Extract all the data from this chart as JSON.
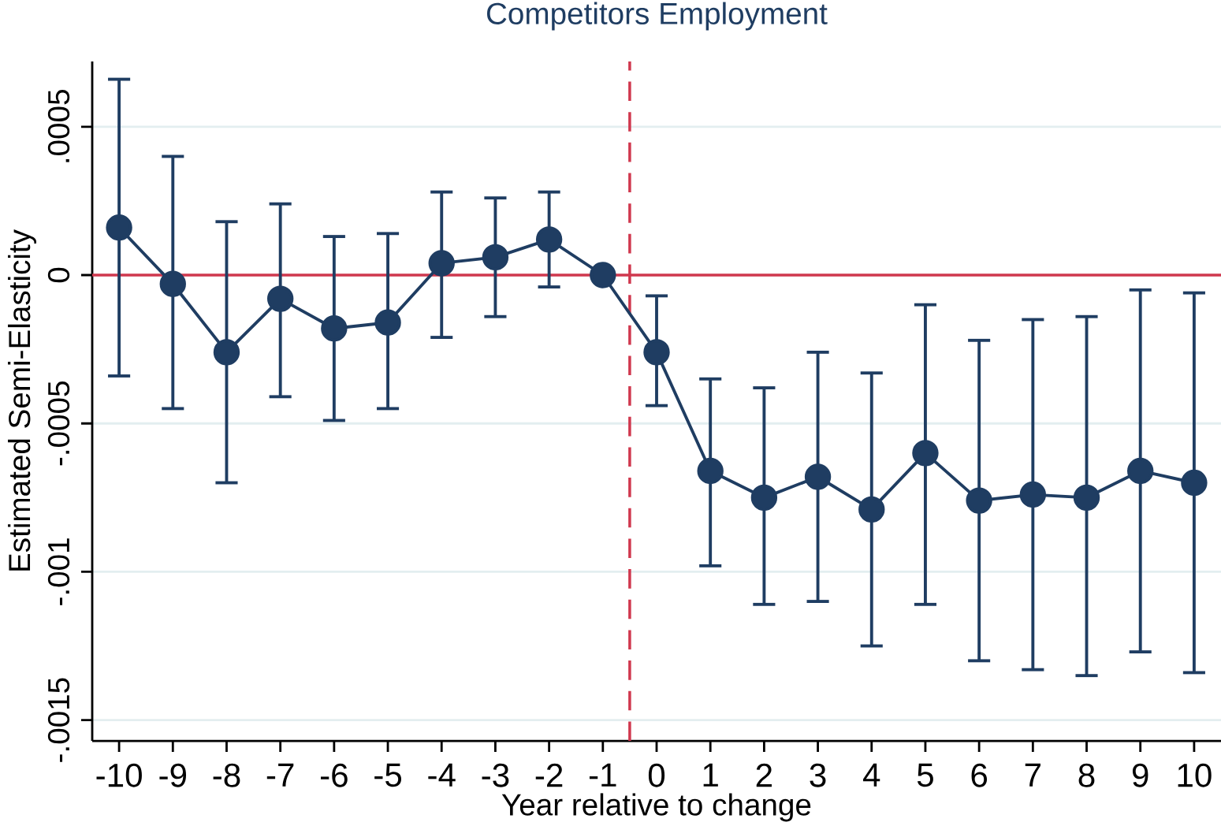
{
  "chart_data": {
    "type": "line",
    "title": "Competitors Employment",
    "xlabel": "Year relative to change",
    "ylabel": "Estimated Semi-Elasticity",
    "x": [
      -10,
      -9,
      -8,
      -7,
      -6,
      -5,
      -4,
      -3,
      -2,
      -1,
      0,
      1,
      2,
      3,
      4,
      5,
      6,
      7,
      8,
      9,
      10
    ],
    "series": [
      {
        "color": "#1f3d62",
        "values": [
          0.00016,
          -3e-05,
          -0.00026,
          -8e-05,
          -0.00018,
          -0.00016,
          4e-05,
          6e-05,
          0.00012,
          0,
          -0.00026,
          -0.00066,
          -0.00075,
          -0.00068,
          -0.00079,
          -0.0006,
          -0.00076,
          -0.00074,
          -0.00075,
          -0.00066,
          -0.0007
        ],
        "errors": [
          [
            -0.00034,
            0.00066
          ],
          [
            -0.00045,
            0.0004
          ],
          [
            -0.0007,
            0.00018
          ],
          [
            -0.00041,
            0.00024
          ],
          [
            -0.00049,
            0.00013
          ],
          [
            -0.00045,
            0.00014
          ],
          [
            -0.00021,
            0.00028
          ],
          [
            -0.00014,
            0.00026
          ],
          [
            -4e-05,
            0.00028
          ],
          null,
          [
            -0.00044,
            -7e-05
          ],
          [
            -0.00098,
            -0.00035
          ],
          [
            -0.00111,
            -0.00038
          ],
          [
            -0.0011,
            -0.00026
          ],
          [
            -0.00125,
            -0.00033
          ],
          [
            -0.00111,
            -0.0001
          ],
          [
            -0.0013,
            -0.00022
          ],
          [
            -0.00133,
            -0.00015
          ],
          [
            -0.00135,
            -0.00014
          ],
          [
            -0.00127,
            -5e-05
          ],
          [
            -0.00134,
            -6e-05
          ]
        ]
      }
    ],
    "xlim": [
      -10.5,
      10.5
    ],
    "ylim": [
      -0.00157,
      0.00072
    ],
    "xticks": [
      -10,
      -9,
      -8,
      -7,
      -6,
      -5,
      -4,
      -3,
      -2,
      -1,
      0,
      1,
      2,
      3,
      4,
      5,
      6,
      7,
      8,
      9,
      10
    ],
    "yticks": [
      {
        "value": -0.0015,
        "label": "-.0015"
      },
      {
        "value": -0.001,
        "label": "-.001"
      },
      {
        "value": -0.0005,
        "label": "-.0005"
      },
      0,
      {
        "value": 0.0005,
        "label": ".0005"
      }
    ],
    "grid": "y",
    "marker": "circle",
    "line_style": "solid",
    "ref_lines": [
      {
        "axis": "y",
        "value": 0,
        "color": "#d0384e",
        "line_style": "solid"
      },
      {
        "axis": "x",
        "value": -0.5,
        "color": "#d0384e",
        "line_style": "dashed"
      }
    ]
  }
}
